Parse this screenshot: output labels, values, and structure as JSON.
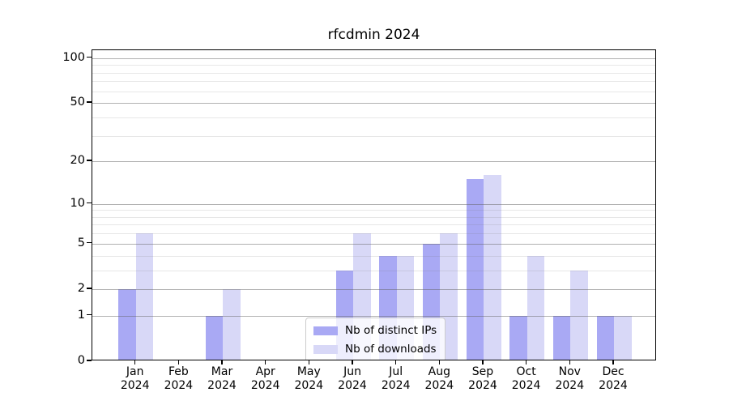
{
  "title": "rfcdmin 2024",
  "chart_data": {
    "type": "bar",
    "title": "rfcdmin 2024",
    "categories": [
      "Jan",
      "Feb",
      "Mar",
      "Apr",
      "May",
      "Jun",
      "Jul",
      "Aug",
      "Sep",
      "Oct",
      "Nov",
      "Dec"
    ],
    "year_label": "2024",
    "series": [
      {
        "name": "Nb of distinct IPs",
        "color": "#a9a9f4",
        "values": [
          2,
          0,
          1,
          0,
          0,
          3,
          4,
          5,
          15,
          1,
          1,
          1
        ]
      },
      {
        "name": "Nb of downloads",
        "color": "#d8d8f7",
        "values": [
          6,
          0,
          2,
          0,
          0,
          6,
          4,
          6,
          16,
          4,
          3,
          1
        ]
      }
    ],
    "xlabel": "",
    "ylabel": "",
    "yscale": "log10(1+v)",
    "ylim": [
      0,
      112
    ],
    "major_yticks": [
      0,
      1,
      2,
      5,
      10,
      20,
      50,
      100
    ],
    "minor_yticks": [
      3,
      4,
      6,
      7,
      8,
      9,
      30,
      40,
      60,
      70,
      80,
      90
    ],
    "grid": true,
    "legend_position": "lower center"
  },
  "colors": {
    "spine": "#000000",
    "major_grid": "#b0b0b0",
    "minor_grid": "#e7e7e7",
    "background": "#ffffff"
  }
}
